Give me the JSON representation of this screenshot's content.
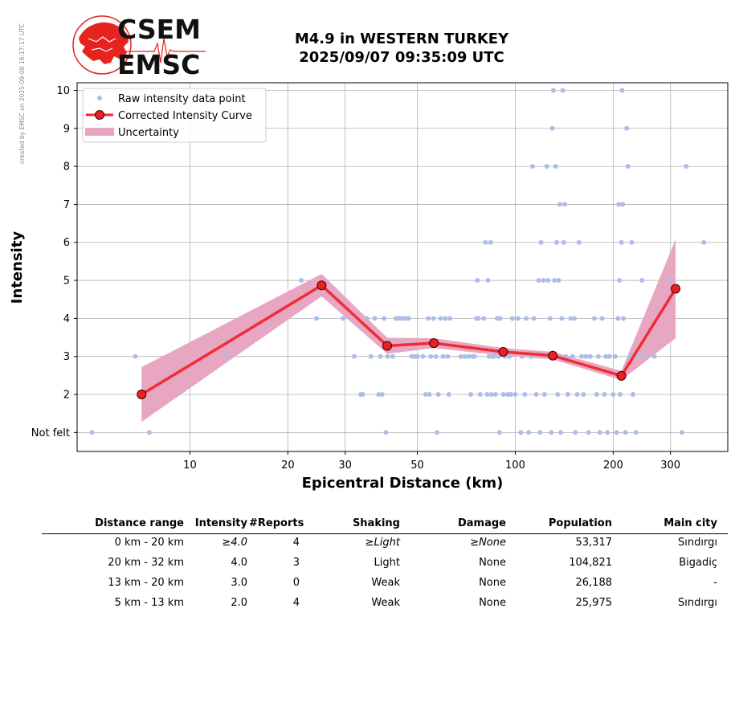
{
  "header": {
    "side_note": "created by EMSC on 2025-09-08 16:17:17 UTC",
    "logo_text_top": "CSEM",
    "logo_text_bottom": "EMSC",
    "title_line1": "M4.9 in WESTERN TURKEY",
    "title_line2": "2025/09/07 09:35:09 UTC"
  },
  "chart_data": {
    "type": "scatter",
    "xlabel": "Epicentral Distance (km)",
    "ylabel": "Intensity",
    "xscale": "log",
    "xlim": [
      4.5,
      450
    ],
    "ylim": [
      0.5,
      10.2
    ],
    "x_ticks": [
      10,
      20,
      30,
      50,
      100,
      200,
      300
    ],
    "y_ticks": [
      1,
      2,
      3,
      4,
      5,
      6,
      7,
      8,
      9,
      10
    ],
    "y_tick_labels": [
      "Not felt",
      "2",
      "3",
      "4",
      "5",
      "6",
      "7",
      "8",
      "9",
      "10"
    ],
    "grid": true,
    "legend_position": "top-left",
    "colors": {
      "raw": "#aebde8",
      "curve": "#f0262c",
      "marker_face": "#e82222",
      "uncertainty": "#e7a7c3"
    },
    "legend": [
      {
        "label": "Raw intensity data point",
        "kind": "dot"
      },
      {
        "label": "Corrected Intensity Curve",
        "kind": "line"
      },
      {
        "label": "Uncertainty",
        "kind": "band"
      }
    ],
    "corrected_curve": [
      {
        "x": 7.1,
        "y": 2.0
      },
      {
        "x": 25.4,
        "y": 4.87
      },
      {
        "x": 40.4,
        "y": 3.28
      },
      {
        "x": 56.2,
        "y": 3.35
      },
      {
        "x": 91.8,
        "y": 3.12
      },
      {
        "x": 130.4,
        "y": 3.02
      },
      {
        "x": 212.0,
        "y": 2.49
      },
      {
        "x": 311.0,
        "y": 4.78
      }
    ],
    "uncertainty_band": [
      {
        "x": 7.1,
        "low": 1.28,
        "high": 2.72
      },
      {
        "x": 25.4,
        "low": 4.58,
        "high": 5.17
      },
      {
        "x": 40.4,
        "low": 3.07,
        "high": 3.49
      },
      {
        "x": 56.2,
        "low": 3.22,
        "high": 3.48
      },
      {
        "x": 91.8,
        "low": 3.02,
        "high": 3.22
      },
      {
        "x": 130.4,
        "low": 2.92,
        "high": 3.12
      },
      {
        "x": 212.0,
        "low": 2.38,
        "high": 2.62
      },
      {
        "x": 311.0,
        "low": 3.48,
        "high": 6.08
      }
    ],
    "raw_points": [
      {
        "x": 5.0,
        "y": 1
      },
      {
        "x": 7.5,
        "y": 1
      },
      {
        "x": 6.8,
        "y": 3
      },
      {
        "x": 13.0,
        "y": 3
      },
      {
        "x": 22.0,
        "y": 5
      },
      {
        "x": 24.5,
        "y": 4
      },
      {
        "x": 29.5,
        "y": 4
      },
      {
        "x": 32.0,
        "y": 3
      },
      {
        "x": 33.5,
        "y": 2
      },
      {
        "x": 34.0,
        "y": 2
      },
      {
        "x": 35.0,
        "y": 4
      },
      {
        "x": 36.0,
        "y": 3
      },
      {
        "x": 37.0,
        "y": 4
      },
      {
        "x": 38.0,
        "y": 2
      },
      {
        "x": 38.5,
        "y": 3
      },
      {
        "x": 39.0,
        "y": 2
      },
      {
        "x": 39.5,
        "y": 4
      },
      {
        "x": 40.0,
        "y": 1
      },
      {
        "x": 40.5,
        "y": 3
      },
      {
        "x": 42.0,
        "y": 3
      },
      {
        "x": 43.0,
        "y": 4
      },
      {
        "x": 44.0,
        "y": 4
      },
      {
        "x": 45.0,
        "y": 4
      },
      {
        "x": 46.0,
        "y": 4
      },
      {
        "x": 47.0,
        "y": 4
      },
      {
        "x": 48.0,
        "y": 3
      },
      {
        "x": 49.0,
        "y": 3
      },
      {
        "x": 50.0,
        "y": 3
      },
      {
        "x": 52.0,
        "y": 3
      },
      {
        "x": 53.0,
        "y": 2
      },
      {
        "x": 54.0,
        "y": 4
      },
      {
        "x": 54.5,
        "y": 2
      },
      {
        "x": 55.0,
        "y": 3
      },
      {
        "x": 56.0,
        "y": 4
      },
      {
        "x": 57.0,
        "y": 3
      },
      {
        "x": 57.5,
        "y": 1
      },
      {
        "x": 58.0,
        "y": 2
      },
      {
        "x": 59.0,
        "y": 4
      },
      {
        "x": 60.0,
        "y": 3
      },
      {
        "x": 61.0,
        "y": 4
      },
      {
        "x": 62.0,
        "y": 3
      },
      {
        "x": 62.5,
        "y": 2
      },
      {
        "x": 63.0,
        "y": 4
      },
      {
        "x": 68.0,
        "y": 3
      },
      {
        "x": 70.0,
        "y": 3
      },
      {
        "x": 72.0,
        "y": 3
      },
      {
        "x": 73.0,
        "y": 2
      },
      {
        "x": 74.0,
        "y": 3
      },
      {
        "x": 75.0,
        "y": 3
      },
      {
        "x": 76.0,
        "y": 4
      },
      {
        "x": 76.5,
        "y": 5
      },
      {
        "x": 77.0,
        "y": 4
      },
      {
        "x": 78.0,
        "y": 2
      },
      {
        "x": 80.0,
        "y": 4
      },
      {
        "x": 81.0,
        "y": 6
      },
      {
        "x": 82.0,
        "y": 2
      },
      {
        "x": 82.5,
        "y": 5
      },
      {
        "x": 83.0,
        "y": 3
      },
      {
        "x": 84.0,
        "y": 6
      },
      {
        "x": 84.5,
        "y": 2
      },
      {
        "x": 85.0,
        "y": 3
      },
      {
        "x": 86.0,
        "y": 3
      },
      {
        "x": 87.0,
        "y": 2
      },
      {
        "x": 88.0,
        "y": 4
      },
      {
        "x": 89.0,
        "y": 3
      },
      {
        "x": 89.5,
        "y": 1
      },
      {
        "x": 90.0,
        "y": 4
      },
      {
        "x": 92.0,
        "y": 2
      },
      {
        "x": 93.0,
        "y": 3
      },
      {
        "x": 95.0,
        "y": 2
      },
      {
        "x": 96.0,
        "y": 3
      },
      {
        "x": 97.0,
        "y": 2
      },
      {
        "x": 98.0,
        "y": 4
      },
      {
        "x": 100.0,
        "y": 2
      },
      {
        "x": 102.0,
        "y": 4
      },
      {
        "x": 104.0,
        "y": 1
      },
      {
        "x": 105.0,
        "y": 3
      },
      {
        "x": 107.0,
        "y": 2
      },
      {
        "x": 108.0,
        "y": 4
      },
      {
        "x": 110.0,
        "y": 1
      },
      {
        "x": 112.0,
        "y": 3
      },
      {
        "x": 113.0,
        "y": 8
      },
      {
        "x": 114.0,
        "y": 4
      },
      {
        "x": 116.0,
        "y": 2
      },
      {
        "x": 118.0,
        "y": 5
      },
      {
        "x": 119.0,
        "y": 1
      },
      {
        "x": 120.0,
        "y": 6
      },
      {
        "x": 122.0,
        "y": 5
      },
      {
        "x": 123.0,
        "y": 2
      },
      {
        "x": 124.0,
        "y": 3
      },
      {
        "x": 125.0,
        "y": 8
      },
      {
        "x": 126.0,
        "y": 5
      },
      {
        "x": 128.0,
        "y": 4
      },
      {
        "x": 129.0,
        "y": 1
      },
      {
        "x": 130.0,
        "y": 9
      },
      {
        "x": 131.0,
        "y": 10
      },
      {
        "x": 132.0,
        "y": 5
      },
      {
        "x": 133.0,
        "y": 8
      },
      {
        "x": 134.0,
        "y": 6
      },
      {
        "x": 135.0,
        "y": 2
      },
      {
        "x": 136.0,
        "y": 5
      },
      {
        "x": 137.0,
        "y": 7
      },
      {
        "x": 138.0,
        "y": 1
      },
      {
        "x": 139.0,
        "y": 4
      },
      {
        "x": 140.0,
        "y": 10
      },
      {
        "x": 141.0,
        "y": 6
      },
      {
        "x": 142.0,
        "y": 7
      },
      {
        "x": 143.0,
        "y": 3
      },
      {
        "x": 145.0,
        "y": 2
      },
      {
        "x": 148.0,
        "y": 4
      },
      {
        "x": 150.0,
        "y": 3
      },
      {
        "x": 152.0,
        "y": 4
      },
      {
        "x": 153.0,
        "y": 1
      },
      {
        "x": 155.0,
        "y": 2
      },
      {
        "x": 157.0,
        "y": 6
      },
      {
        "x": 160.0,
        "y": 3
      },
      {
        "x": 162.0,
        "y": 2
      },
      {
        "x": 165.0,
        "y": 3
      },
      {
        "x": 168.0,
        "y": 1
      },
      {
        "x": 170.0,
        "y": 3
      },
      {
        "x": 175.0,
        "y": 4
      },
      {
        "x": 178.0,
        "y": 2
      },
      {
        "x": 180.0,
        "y": 3
      },
      {
        "x": 182.0,
        "y": 1
      },
      {
        "x": 185.0,
        "y": 4
      },
      {
        "x": 188.0,
        "y": 2
      },
      {
        "x": 190.0,
        "y": 3
      },
      {
        "x": 192.0,
        "y": 1
      },
      {
        "x": 195.0,
        "y": 3
      },
      {
        "x": 200.0,
        "y": 2
      },
      {
        "x": 203.0,
        "y": 3
      },
      {
        "x": 205.0,
        "y": 1
      },
      {
        "x": 207.0,
        "y": 4
      },
      {
        "x": 208.0,
        "y": 7
      },
      {
        "x": 209.0,
        "y": 5
      },
      {
        "x": 210.0,
        "y": 2
      },
      {
        "x": 212.0,
        "y": 6
      },
      {
        "x": 213.0,
        "y": 10
      },
      {
        "x": 214.0,
        "y": 7
      },
      {
        "x": 215.0,
        "y": 4
      },
      {
        "x": 218.0,
        "y": 1
      },
      {
        "x": 220.0,
        "y": 9
      },
      {
        "x": 222.0,
        "y": 8
      },
      {
        "x": 225.0,
        "y": 3
      },
      {
        "x": 228.0,
        "y": 6
      },
      {
        "x": 230.0,
        "y": 2
      },
      {
        "x": 235.0,
        "y": 1
      },
      {
        "x": 240.0,
        "y": 3
      },
      {
        "x": 245.0,
        "y": 5
      },
      {
        "x": 250.0,
        "y": 3
      },
      {
        "x": 268.0,
        "y": 3
      },
      {
        "x": 295.0,
        "y": 5
      },
      {
        "x": 325.0,
        "y": 1
      },
      {
        "x": 335.0,
        "y": 8
      },
      {
        "x": 380.0,
        "y": 6
      }
    ]
  },
  "table": {
    "headers": [
      "Distance range",
      "Intensity",
      "#Reports",
      "Shaking",
      "Damage",
      "Population",
      "Main city"
    ],
    "rows": [
      {
        "range": "0 km -   20 km",
        "intensity": "≥4.0",
        "reports": "4",
        "shaking": "≥Light",
        "damage": "≥None",
        "population": "53,317",
        "city": "Sındırgı"
      },
      {
        "range": "20 km -   32 km",
        "intensity": "4.0",
        "reports": "3",
        "shaking": "Light",
        "damage": "None",
        "population": "104,821",
        "city": "Bigadiç"
      },
      {
        "range": "13 km -   20 km",
        "intensity": "3.0",
        "reports": "0",
        "shaking": "Weak",
        "damage": "None",
        "population": "26,188",
        "city": "-"
      },
      {
        "range": "5 km -   13 km",
        "intensity": "2.0",
        "reports": "4",
        "shaking": "Weak",
        "damage": "None",
        "population": "25,975",
        "city": "Sındırgı"
      }
    ]
  }
}
